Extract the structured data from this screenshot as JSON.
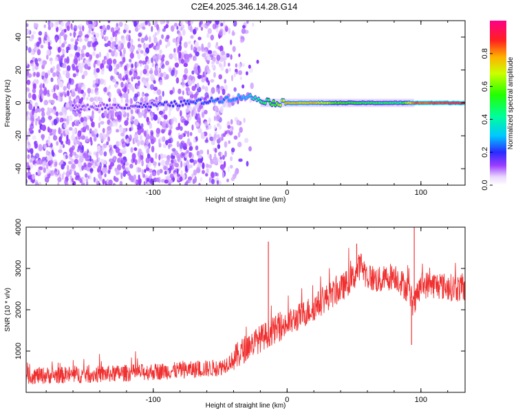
{
  "title": "C2E4.2025.346.14.28.G14",
  "chart_data": [
    {
      "type": "heatmap",
      "xlabel": "Height of straight line (km)",
      "ylabel": "Frequency (Hz)",
      "xlim": [
        -195,
        133
      ],
      "ylim": [
        -50,
        50
      ],
      "xticks": [
        -100,
        0,
        100
      ],
      "xtick_labels": [
        "-100",
        "0",
        "100"
      ],
      "yticks": [
        -40,
        -20,
        0,
        20,
        40
      ],
      "ytick_labels": [
        "-40",
        "-20",
        "0",
        "20",
        "40"
      ],
      "colorbar": {
        "label": "Normalized spectral amplitude",
        "range": [
          0,
          1
        ],
        "ticks": [
          0.0,
          0.2,
          0.4,
          0.6,
          0.8
        ],
        "tick_labels": [
          "0.0",
          "0.2",
          "0.4",
          "0.6",
          "0.8"
        ]
      },
      "ridge": [
        {
          "x": -160,
          "f": -3,
          "amp": 0.12
        },
        {
          "x": -120,
          "f": -2,
          "amp": 0.14
        },
        {
          "x": -90,
          "f": -1,
          "amp": 0.18
        },
        {
          "x": -60,
          "f": 1,
          "amp": 0.22
        },
        {
          "x": -40,
          "f": 3,
          "amp": 0.26
        },
        {
          "x": -30,
          "f": 4,
          "amp": 0.3
        },
        {
          "x": -20,
          "f": 2,
          "amp": 0.45
        },
        {
          "x": -10,
          "f": 0,
          "amp": 0.55
        },
        {
          "x": 0,
          "f": 0,
          "amp": 0.75
        },
        {
          "x": 20,
          "f": 0,
          "amp": 0.75
        },
        {
          "x": 40,
          "f": 0,
          "amp": 0.55
        },
        {
          "x": 60,
          "f": 0,
          "amp": 0.5
        },
        {
          "x": 85,
          "f": 0,
          "amp": 0.45
        },
        {
          "x": 95,
          "f": 0,
          "amp": 0.85
        },
        {
          "x": 133,
          "f": 0,
          "amp": 0.9
        }
      ]
    },
    {
      "type": "line",
      "xlabel": "Height of straight line (km)",
      "ylabel": "SNR (10 * v/v)",
      "xlim": [
        -195,
        133
      ],
      "ylim": [
        0,
        4000
      ],
      "xticks": [
        -100,
        0,
        100
      ],
      "xtick_labels": [
        "-100",
        "0",
        "100"
      ],
      "yticks": [
        1000,
        2000,
        3000,
        4000
      ],
      "ytick_labels": [
        "1000",
        "2000",
        "3000",
        "4000"
      ],
      "color": "#f03030",
      "series": [
        {
          "name": "SNR",
          "x": [
            -195,
            -160,
            -130,
            -100,
            -70,
            -50,
            -40,
            -30,
            -20,
            -10,
            0,
            10,
            20,
            30,
            40,
            50,
            55,
            60,
            70,
            80,
            90,
            95,
            100,
            110,
            120,
            133
          ],
          "y": [
            400,
            420,
            450,
            500,
            550,
            600,
            800,
            1100,
            1300,
            1500,
            1650,
            1850,
            2050,
            2300,
            2500,
            2800,
            3100,
            2800,
            2700,
            2850,
            2500,
            2100,
            2600,
            2600,
            2550,
            2500
          ]
        }
      ],
      "spikes": [
        {
          "x": -14,
          "y": 3650
        },
        {
          "x": 52,
          "y": 3600
        },
        {
          "x": 95,
          "y": 4000
        },
        {
          "x": 93,
          "y": 1150
        }
      ]
    }
  ]
}
